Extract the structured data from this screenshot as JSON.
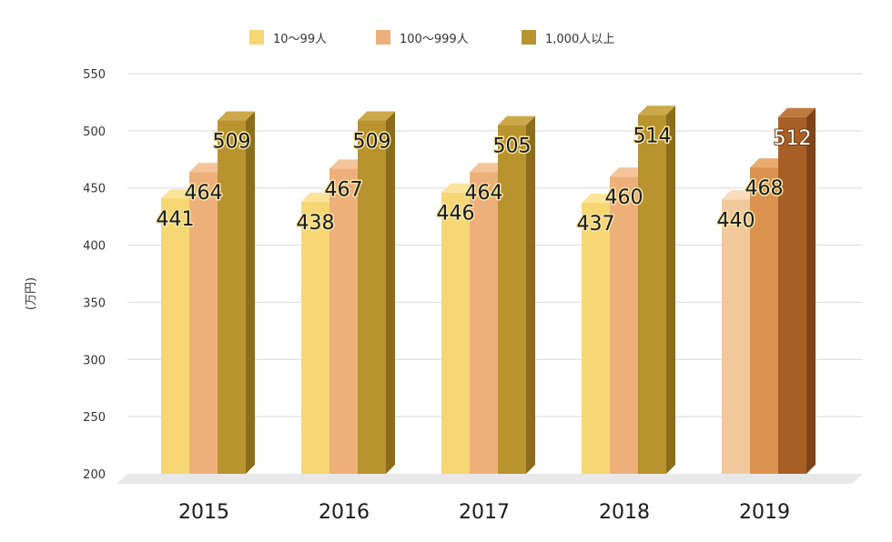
{
  "chart_data": {
    "type": "bar",
    "title": "",
    "xlabel": "",
    "ylabel": "(万円)",
    "ylim": [
      200,
      550
    ],
    "yticks": [
      200,
      250,
      300,
      350,
      400,
      450,
      500,
      550
    ],
    "grid": true,
    "legend_position": "top-center",
    "categories": [
      "2015",
      "2016",
      "2017",
      "2018",
      "2019"
    ],
    "series": [
      {
        "name": "10〜99人",
        "values": [
          441,
          438,
          446,
          437,
          440
        ]
      },
      {
        "name": "100〜999人",
        "values": [
          464,
          467,
          464,
          460,
          468
        ]
      },
      {
        "name": "1,000人以上",
        "values": [
          509,
          509,
          505,
          514,
          512
        ]
      }
    ],
    "colors": {
      "series": [
        "#f7d774",
        "#eeb07a",
        "#b8932e"
      ],
      "series_side": [
        "#d6b654",
        "#cf915d",
        "#8c6d1c"
      ],
      "series_top": [
        "#fbe49a",
        "#f4c59a",
        "#cba84a"
      ],
      "highlight": [
        "#f2c99c",
        "#db924e",
        "#a85f26"
      ],
      "highlight_side": [
        "#d9ac7e",
        "#b97537",
        "#7f4518"
      ],
      "highlight_top": [
        "#f7dcbd",
        "#e8ab70",
        "#bf7a3e"
      ],
      "gridline": "#d9d9d9",
      "floor": "#e8e8e8"
    }
  }
}
